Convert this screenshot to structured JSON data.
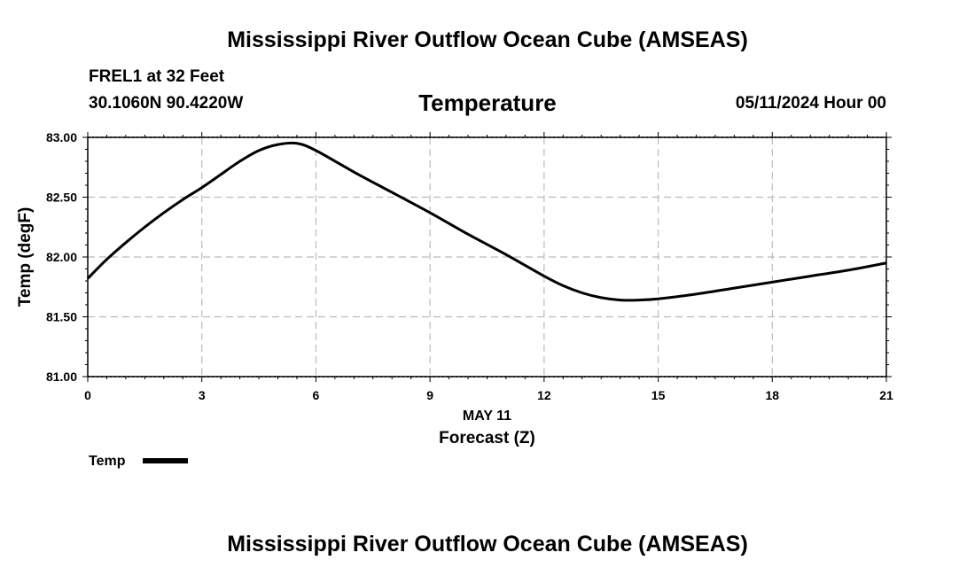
{
  "page": {
    "title": "Mississippi River Outflow Ocean Cube (AMSEAS)",
    "footer_title": "Mississippi River Outflow Ocean Cube (AMSEAS)",
    "station": "FREL1 at 32 Feet",
    "coords": "30.1060N  90.4220W",
    "datetime": "05/11/2024 Hour 00"
  },
  "chart_data": {
    "type": "line",
    "title": "Temperature",
    "xlabel": "Forecast (Z)",
    "xlabel_date": "MAY 11",
    "ylabel": "Temp (degF)",
    "xlim": [
      0,
      21
    ],
    "ylim": [
      81.0,
      83.0
    ],
    "xticks": [
      0,
      3,
      6,
      9,
      12,
      15,
      18,
      21
    ],
    "yticks": [
      81.0,
      81.5,
      82.0,
      82.5,
      83.0
    ],
    "ytick_labels": [
      "81.00",
      "81.50",
      "82.00",
      "82.50",
      "83.00"
    ],
    "grid": true,
    "legend": "bottom-left",
    "series": [
      {
        "name": "Temp",
        "color": "#000000",
        "x": [
          0,
          0.5,
          1,
          1.5,
          2,
          2.5,
          3,
          3.5,
          4,
          4.5,
          5,
          5.5,
          6,
          7,
          8,
          9,
          10,
          11,
          12,
          12.5,
          13,
          13.5,
          14,
          14.5,
          15,
          16,
          17,
          18,
          19,
          20,
          21
        ],
        "y": [
          81.82,
          81.98,
          82.12,
          82.25,
          82.37,
          82.48,
          82.58,
          82.69,
          82.8,
          82.89,
          82.94,
          82.95,
          82.89,
          82.71,
          82.54,
          82.37,
          82.19,
          82.02,
          81.84,
          81.76,
          81.7,
          81.66,
          81.64,
          81.64,
          81.65,
          81.69,
          81.74,
          81.79,
          81.84,
          81.89,
          81.95
        ]
      }
    ]
  }
}
